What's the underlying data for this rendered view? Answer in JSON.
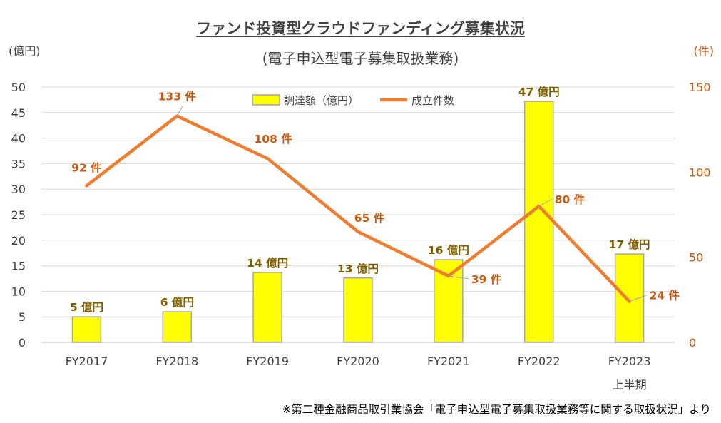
{
  "title": "ファンド投資型クラウドファンディング募集状況",
  "subtitle": "(電子申込型電子募集取扱業務)",
  "left_unit": "(億円)",
  "right_unit": "(件)",
  "source_note": "※第二種金融商品取引業協会「電子申込型電子募集取扱業務等に関する取扱状況」より",
  "colors": {
    "bar": "#ffff00",
    "bar_border": "#a6a6a6",
    "line": "#ed7d31",
    "line_label": "#c55a11",
    "bar_label": "#7f6000"
  },
  "chart_data": {
    "type": "bar+line",
    "categories": [
      "FY2017",
      "FY2018",
      "FY2019",
      "FY2020",
      "FY2021",
      "FY2022",
      "FY2023"
    ],
    "category_sublabels": [
      "",
      "",
      "",
      "",
      "",
      "",
      "上半期"
    ],
    "series": [
      {
        "name": "調達額（億円）",
        "type": "bar",
        "axis": "left",
        "values": [
          5,
          6,
          13.7,
          12.6,
          16.2,
          47.2,
          17.3
        ],
        "labels": [
          "5 億円",
          "6 億円",
          "14 億円",
          "13 億円",
          "16 億円",
          "47 億円",
          "17 億円"
        ]
      },
      {
        "name": "成立件数",
        "type": "line",
        "axis": "right",
        "values": [
          92,
          133,
          108,
          65,
          39,
          80,
          24
        ],
        "labels": [
          "92 件",
          "133 件",
          "108 件",
          "65 件",
          "39 件",
          "80 件",
          "24 件"
        ]
      }
    ],
    "y_left": {
      "min": 0,
      "max": 50,
      "ticks": [
        0,
        5,
        10,
        15,
        20,
        25,
        30,
        35,
        40,
        45,
        50
      ]
    },
    "y_right": {
      "min": 0,
      "max": 150,
      "ticks": [
        0,
        50,
        100,
        150
      ]
    },
    "grid": true,
    "legend_position": "top-center"
  }
}
